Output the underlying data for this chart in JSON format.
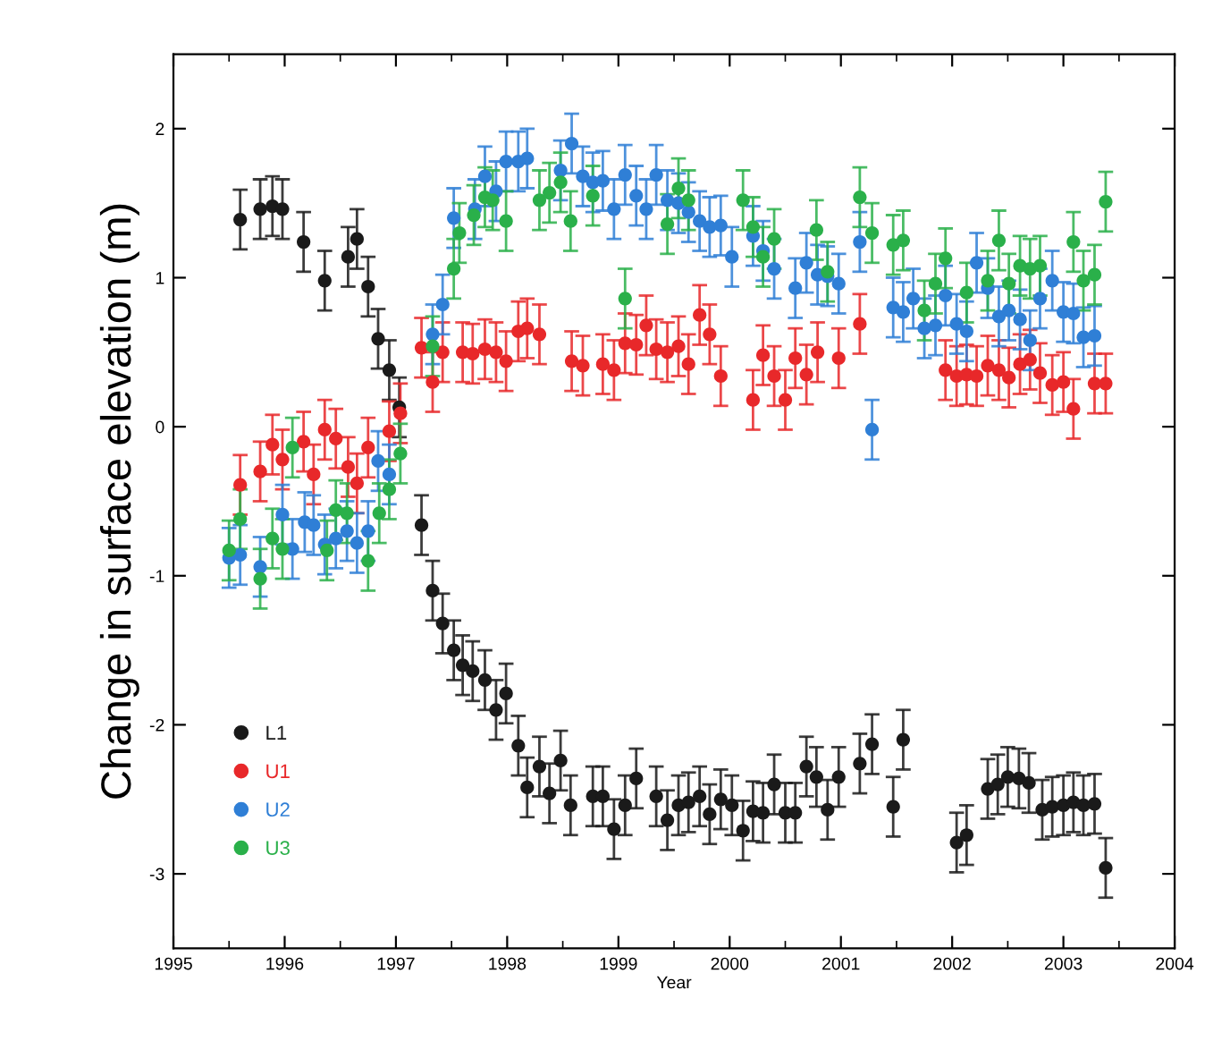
{
  "chart_data": {
    "type": "scatter",
    "xlabel": "Year",
    "ylabel": "Change in surface elevation (m)",
    "xlim": [
      1995,
      2004
    ],
    "xticks": [
      1995,
      1996,
      1997,
      1998,
      1999,
      2000,
      2001,
      2002,
      2003,
      2004
    ],
    "ylim": [
      -3.5,
      2.5
    ],
    "yticks": [
      -3,
      -2,
      -1,
      0,
      1,
      2
    ],
    "grid": false,
    "legend": "bottom left",
    "marker": "circle",
    "series": [
      {
        "name": "L1",
        "color": "#1a1a1a",
        "errors": [
          0.2,
          0.2,
          0.2,
          0.2,
          0.2,
          0.2,
          0.2,
          0.2,
          0.2,
          0.2,
          0.2,
          0.2,
          0.2,
          0.2,
          0.2,
          0.2,
          0.2,
          0.2,
          0.2,
          0.2,
          0.2,
          0.2,
          0.2,
          0.2,
          0.2,
          0.2,
          0.2,
          0.2,
          0.2,
          0.2,
          0.2,
          0.2,
          0.2,
          0.2,
          0.2,
          0.2,
          0.2,
          0.2,
          0.2,
          0.2,
          0.2,
          0.2,
          0.2,
          0.2,
          0.2,
          0.2,
          0.2,
          0.2,
          0.2,
          0.2,
          0.2,
          0.2,
          0.2,
          0.2,
          0.2,
          0.2,
          0.2,
          0.2,
          0.2,
          0.2,
          0.2,
          0.2,
          0.2,
          0.2,
          0.2,
          0.2,
          0.2,
          0.2
        ],
        "x": [
          1995.6,
          1995.78,
          1995.89,
          1995.98,
          1996.17,
          1996.36,
          1996.57,
          1996.65,
          1996.75,
          1996.84,
          1996.94,
          1997.03,
          1997.23,
          1997.33,
          1997.42,
          1997.52,
          1997.6,
          1997.69,
          1997.8,
          1997.9,
          1997.99,
          1998.1,
          1998.18,
          1998.29,
          1998.38,
          1998.48,
          1998.57,
          1998.77,
          1998.86,
          1998.96,
          1999.06,
          1999.16,
          1999.34,
          1999.44,
          1999.54,
          1999.63,
          1999.73,
          1999.82,
          1999.92,
          2000.02,
          2000.12,
          2000.21,
          2000.3,
          2000.4,
          2000.5,
          2000.59,
          2000.69,
          2000.78,
          2000.88,
          2000.98,
          2001.17,
          2001.28,
          2001.47,
          2001.56,
          2002.04,
          2002.13,
          2002.32,
          2002.41,
          2002.5,
          2002.6,
          2002.69,
          2002.81,
          2002.9,
          2003.0,
          2003.09,
          2003.18,
          2003.28,
          2003.38
        ],
        "values": [
          1.39,
          1.46,
          1.48,
          1.46,
          1.24,
          0.98,
          1.14,
          1.26,
          0.94,
          0.59,
          0.38,
          0.13,
          -0.66,
          -1.1,
          -1.32,
          -1.5,
          -1.6,
          -1.64,
          -1.7,
          -1.9,
          -1.79,
          -2.14,
          -2.42,
          -2.28,
          -2.46,
          -2.24,
          -2.54,
          -2.48,
          -2.48,
          -2.7,
          -2.54,
          -2.36,
          -2.48,
          -2.64,
          -2.54,
          -2.52,
          -2.48,
          -2.6,
          -2.5,
          -2.54,
          -2.71,
          -2.58,
          -2.59,
          -2.4,
          -2.59,
          -2.59,
          -2.28,
          -2.35,
          -2.57,
          -2.35,
          -2.26,
          -2.13,
          -2.55,
          -2.1,
          -2.79,
          -2.74,
          -2.43,
          -2.4,
          -2.35,
          -2.36,
          -2.39,
          -2.57,
          -2.55,
          -2.54,
          -2.52,
          -2.54,
          -2.53,
          -2.96
        ]
      },
      {
        "name": "U1",
        "color": "#e8282a",
        "errors": [
          0.2,
          0.2,
          0.2,
          0.2,
          0.2,
          0.2,
          0.2,
          0.2,
          0.2,
          0.2,
          0.2,
          0.2,
          0.2,
          0.2,
          0.2,
          0.2,
          0.2,
          0.2,
          0.2,
          0.2,
          0.2,
          0.2,
          0.2,
          0.2,
          0.2,
          0.2,
          0.2,
          0.2,
          0.2,
          0.2,
          0.2,
          0.2,
          0.2,
          0.2,
          0.2,
          0.2,
          0.2,
          0.2,
          0.2,
          0.2,
          0.2,
          0.2,
          0.2,
          0.2,
          0.2,
          0.2,
          0.2,
          0.2,
          0.2,
          0.2,
          0.2,
          0.2,
          0.2,
          0.2,
          0.2,
          0.2,
          0.2,
          0.2,
          0.2,
          0.2,
          0.2,
          0.2
        ],
        "x": [
          1995.6,
          1995.78,
          1995.89,
          1995.98,
          1996.17,
          1996.26,
          1996.36,
          1996.46,
          1996.57,
          1996.65,
          1996.75,
          1996.94,
          1997.04,
          1997.23,
          1997.33,
          1997.42,
          1997.6,
          1997.69,
          1997.8,
          1997.9,
          1997.99,
          1998.1,
          1998.18,
          1998.29,
          1998.58,
          1998.68,
          1998.86,
          1998.96,
          1999.06,
          1999.16,
          1999.25,
          1999.34,
          1999.44,
          1999.54,
          1999.63,
          1999.73,
          1999.82,
          1999.92,
          2000.21,
          2000.3,
          2000.4,
          2000.5,
          2000.59,
          2000.69,
          2000.79,
          2000.98,
          2001.17,
          2001.94,
          2002.04,
          2002.13,
          2002.22,
          2002.32,
          2002.42,
          2002.51,
          2002.61,
          2002.7,
          2002.79,
          2002.9,
          2003.0,
          2003.09,
          2003.28,
          2003.38
        ],
        "values": [
          -0.39,
          -0.3,
          -0.12,
          -0.22,
          -0.1,
          -0.32,
          -0.02,
          -0.08,
          -0.27,
          -0.38,
          -0.14,
          -0.03,
          0.09,
          0.53,
          0.3,
          0.5,
          0.5,
          0.49,
          0.52,
          0.5,
          0.44,
          0.64,
          0.66,
          0.62,
          0.44,
          0.41,
          0.42,
          0.38,
          0.56,
          0.55,
          0.68,
          0.52,
          0.5,
          0.54,
          0.42,
          0.75,
          0.62,
          0.34,
          0.18,
          0.48,
          0.34,
          0.18,
          0.46,
          0.35,
          0.5,
          0.46,
          0.69,
          0.38,
          0.34,
          0.35,
          0.34,
          0.41,
          0.38,
          0.33,
          0.42,
          0.45,
          0.36,
          0.28,
          0.3,
          0.12,
          0.29,
          0.29
        ]
      },
      {
        "name": "U2",
        "color": "#2f7fd6",
        "errors": [
          0.2,
          0.2,
          0.2,
          0.2,
          0.2,
          0.2,
          0.2,
          0.2,
          0.2,
          0.2,
          0.2,
          0.2,
          0.2,
          0.2,
          0.2,
          0.2,
          0.2,
          0.2,
          0.2,
          0.2,
          0.2,
          0.2,
          0.2,
          0.2,
          0.2,
          0.2,
          0.2,
          0.2,
          0.2,
          0.2,
          0.2,
          0.2,
          0.2,
          0.2,
          0.2,
          0.2,
          0.2,
          0.2,
          0.2,
          0.2,
          0.2,
          0.2,
          0.2,
          0.2,
          0.2,
          0.2,
          0.2,
          0.2,
          0.2,
          0.2,
          0.2,
          0.2,
          0.2,
          0.2,
          0.2,
          0.2,
          0.2,
          0.2,
          0.2,
          0.2,
          0.2,
          0.2,
          0.2,
          0.2,
          0.2,
          0.2,
          0.2,
          0.2,
          0.2,
          0.2
        ],
        "x": [
          1995.5,
          1995.6,
          1995.78,
          1995.98,
          1996.07,
          1996.18,
          1996.26,
          1996.36,
          1996.46,
          1996.56,
          1996.65,
          1996.75,
          1996.84,
          1996.94,
          1997.33,
          1997.42,
          1997.52,
          1997.71,
          1997.8,
          1997.9,
          1997.99,
          1998.1,
          1998.18,
          1998.48,
          1998.58,
          1998.68,
          1998.77,
          1998.86,
          1998.96,
          1999.06,
          1999.16,
          1999.25,
          1999.34,
          1999.44,
          1999.54,
          1999.63,
          1999.73,
          1999.82,
          1999.92,
          2000.02,
          2000.21,
          2000.3,
          2000.4,
          2000.59,
          2000.69,
          2000.79,
          2000.88,
          2000.98,
          2001.17,
          2001.28,
          2001.47,
          2001.56,
          2001.65,
          2001.75,
          2001.85,
          2001.94,
          2002.04,
          2002.13,
          2002.22,
          2002.32,
          2002.42,
          2002.51,
          2002.61,
          2002.7,
          2002.79,
          2002.9,
          2003.0,
          2003.09,
          2003.18,
          2003.28
        ],
        "values": [
          -0.88,
          -0.86,
          -0.94,
          -0.59,
          -0.82,
          -0.64,
          -0.66,
          -0.79,
          -0.75,
          -0.7,
          -0.78,
          -0.7,
          -0.23,
          -0.32,
          0.62,
          0.82,
          1.4,
          1.46,
          1.68,
          1.58,
          1.78,
          1.78,
          1.8,
          1.72,
          1.9,
          1.68,
          1.64,
          1.65,
          1.46,
          1.69,
          1.55,
          1.46,
          1.69,
          1.52,
          1.5,
          1.44,
          1.38,
          1.34,
          1.35,
          1.14,
          1.28,
          1.18,
          1.06,
          0.93,
          1.1,
          1.02,
          1.01,
          0.96,
          1.24,
          -0.02,
          0.8,
          0.77,
          0.86,
          0.66,
          0.68,
          0.88,
          0.69,
          0.64,
          1.1,
          0.93,
          0.74,
          0.78,
          0.72,
          0.58,
          0.86,
          0.98,
          0.77,
          0.76,
          0.6,
          0.61
        ]
      },
      {
        "name": "U3",
        "color": "#2ab04a",
        "errors": [
          0.2,
          0.2,
          0.2,
          0.2,
          0.2,
          0.2,
          0.2,
          0.2,
          0.2,
          0.2,
          0.2,
          0.2,
          0.2,
          0.2,
          0.2,
          0.2,
          0.2,
          0.2,
          0.2,
          0.2,
          0.2,
          0.2,
          0.2,
          0.2,
          0.2,
          0.2,
          0.2,
          0.2,
          0.2,
          0.2,
          0.2,
          0.2,
          0.2,
          0.2,
          0.2,
          0.2,
          0.2,
          0.2,
          0.2,
          0.2,
          0.2,
          0.2,
          0.2,
          0.2,
          0.2,
          0.2,
          0.2,
          0.2,
          0.2,
          0.2,
          0.2,
          0.2,
          0.2
        ],
        "x": [
          1995.5,
          1995.6,
          1995.78,
          1995.89,
          1995.98,
          1996.07,
          1996.38,
          1996.46,
          1996.56,
          1996.75,
          1996.85,
          1996.94,
          1997.04,
          1997.33,
          1997.52,
          1997.57,
          1997.7,
          1997.8,
          1997.87,
          1997.99,
          1998.29,
          1998.38,
          1998.48,
          1998.57,
          1998.77,
          1999.06,
          1999.44,
          1999.54,
          1999.63,
          2000.12,
          2000.21,
          2000.3,
          2000.4,
          2000.78,
          2000.88,
          2001.17,
          2001.28,
          2001.47,
          2001.56,
          2001.75,
          2001.85,
          2001.94,
          2002.13,
          2002.32,
          2002.42,
          2002.51,
          2002.61,
          2002.7,
          2002.79,
          2003.09,
          2003.18,
          2003.28,
          2003.38
        ],
        "values": [
          -0.83,
          -0.62,
          -1.02,
          -0.75,
          -0.82,
          -0.14,
          -0.83,
          -0.56,
          -0.58,
          -0.9,
          -0.58,
          -0.42,
          -0.18,
          0.54,
          1.06,
          1.3,
          1.42,
          1.54,
          1.52,
          1.38,
          1.52,
          1.57,
          1.64,
          1.38,
          1.55,
          0.86,
          1.36,
          1.6,
          1.52,
          1.52,
          1.34,
          1.14,
          1.26,
          1.32,
          1.04,
          1.54,
          1.3,
          1.22,
          1.25,
          0.78,
          0.96,
          1.13,
          0.9,
          0.98,
          1.25,
          0.96,
          1.08,
          1.06,
          1.08,
          1.24,
          0.98,
          1.02,
          1.51
        ]
      }
    ]
  }
}
